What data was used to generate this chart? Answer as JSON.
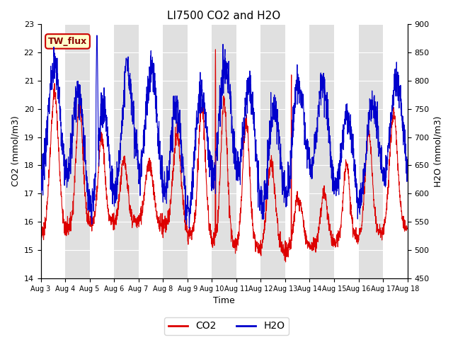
{
  "title": "LI7500 CO2 and H2O",
  "xlabel": "Time",
  "ylabel_left": "CO2 (mmol/m3)",
  "ylabel_right": "H2O (mmol/m3)",
  "ylim_left": [
    14.0,
    23.0
  ],
  "ylim_right": [
    450,
    900
  ],
  "yticks_left": [
    14.0,
    15.0,
    16.0,
    17.0,
    18.0,
    19.0,
    20.0,
    21.0,
    22.0,
    23.0
  ],
  "yticks_right": [
    450,
    500,
    550,
    600,
    650,
    700,
    750,
    800,
    850,
    900
  ],
  "xtick_labels": [
    "Aug 3",
    "Aug 4",
    "Aug 5",
    "Aug 6",
    "Aug 7",
    "Aug 8",
    "Aug 9",
    "Aug 10",
    "Aug 11",
    "Aug 12",
    "Aug 13",
    "Aug 14",
    "Aug 15",
    "Aug 16",
    "Aug 17",
    "Aug 18"
  ],
  "label_box_text": "TW_flux",
  "label_box_facecolor": "#FFFFCC",
  "label_box_edgecolor": "#CC0000",
  "co2_color": "#DD0000",
  "h2o_color": "#0000CC",
  "bg_color": "#FFFFFF",
  "band_color": "#E0E0E0",
  "n_days": 15,
  "points_per_day": 144
}
